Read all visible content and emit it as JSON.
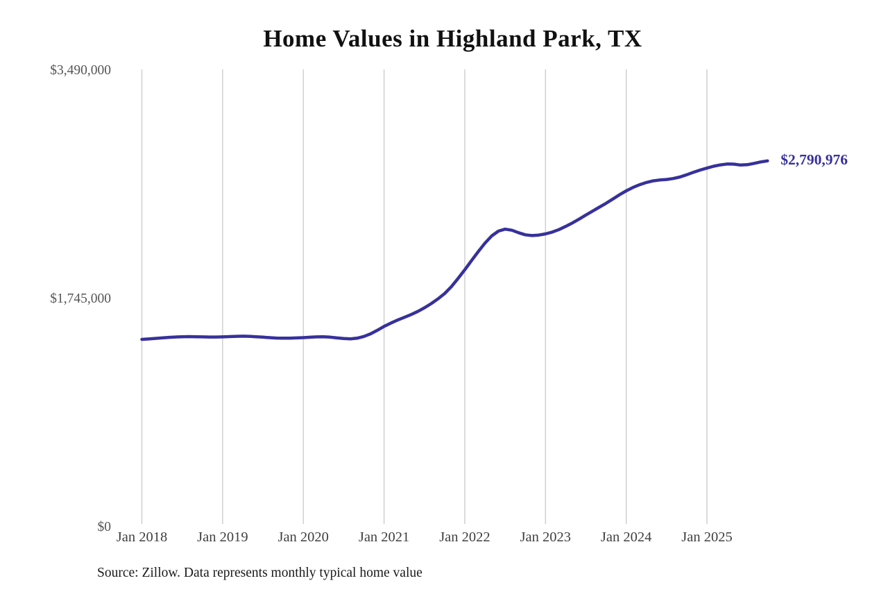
{
  "page": {
    "title": "Home Values in Highland Park, TX",
    "source_note": "Source: Zillow. Data represents monthly typical home value"
  },
  "chart_data": {
    "type": "line",
    "title": "Home Values in Highland Park, TX",
    "xlabel": "",
    "ylabel": "",
    "ylim": [
      0,
      3490000
    ],
    "y_ticks": [
      0,
      1745000,
      3490000
    ],
    "y_tick_labels": [
      "$0",
      "$1,745,000",
      "$3,490,000"
    ],
    "x_tick_labels": [
      "Jan 2018",
      "Jan 2019",
      "Jan 2020",
      "Jan 2021",
      "Jan 2022",
      "Jan 2023",
      "Jan 2024",
      "Jan 2025"
    ],
    "grid": "vertical-only",
    "legend": "none",
    "line_color": "#37319b",
    "gridline_color": "#c9c9c9",
    "end_label": "$2,790,976",
    "latest_value": 2790976,
    "series": [
      {
        "name": "Monthly typical home value",
        "start_month": "2018-01",
        "end_month": "2025-10",
        "frequency": "monthly",
        "values": [
          1427000,
          1430000,
          1434000,
          1438000,
          1442000,
          1445000,
          1447000,
          1448000,
          1447000,
          1446000,
          1445000,
          1445000,
          1446000,
          1448000,
          1450000,
          1451000,
          1450000,
          1447000,
          1444000,
          1440000,
          1437000,
          1436000,
          1436000,
          1438000,
          1440000,
          1443000,
          1446000,
          1447000,
          1444000,
          1438000,
          1433000,
          1431000,
          1436000,
          1449000,
          1469000,
          1496000,
          1526000,
          1551000,
          1574000,
          1595000,
          1616000,
          1640000,
          1668000,
          1700000,
          1736000,
          1777000,
          1829000,
          1892000,
          1958000,
          2028000,
          2097000,
          2162000,
          2217000,
          2254000,
          2269000,
          2261000,
          2242000,
          2226000,
          2220000,
          2224000,
          2233000,
          2247000,
          2266000,
          2290000,
          2317000,
          2346000,
          2377000,
          2407000,
          2437000,
          2467000,
          2499000,
          2532000,
          2562000,
          2588000,
          2609000,
          2626000,
          2638000,
          2645000,
          2649000,
          2656000,
          2668000,
          2685000,
          2704000,
          2721000,
          2736000,
          2750000,
          2760000,
          2767000,
          2766000,
          2759000,
          2762000,
          2772000,
          2783000,
          2790976
        ]
      }
    ],
    "source": "Source: Zillow. Data represents monthly typical home value"
  }
}
